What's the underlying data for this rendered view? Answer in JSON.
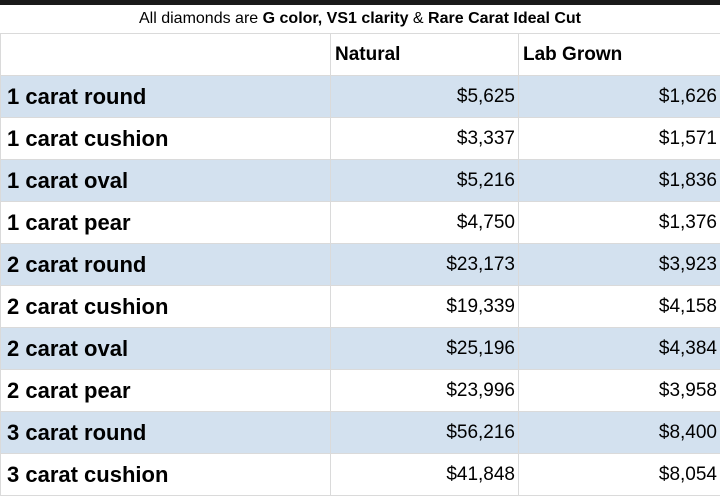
{
  "caption": {
    "prefix": "All diamonds are",
    "color_grade": "G color, VS1 clarity",
    "joiner": "&",
    "cut": "Rare Carat Ideal Cut"
  },
  "table": {
    "headers": [
      "",
      "Natural",
      "Lab Grown"
    ],
    "rows": [
      {
        "label": "1 carat round",
        "natural": "$5,625",
        "lab": "$1,626"
      },
      {
        "label": "1 carat cushion",
        "natural": "$3,337",
        "lab": "$1,571"
      },
      {
        "label": "1 carat oval",
        "natural": "$5,216",
        "lab": "$1,836"
      },
      {
        "label": "1 carat pear",
        "natural": "$4,750",
        "lab": "$1,376"
      },
      {
        "label": "2 carat round",
        "natural": "$23,173",
        "lab": "$3,923"
      },
      {
        "label": "2 carat cushion",
        "natural": "$19,339",
        "lab": "$4,158"
      },
      {
        "label": "2 carat oval",
        "natural": "$25,196",
        "lab": "$4,384"
      },
      {
        "label": "2 carat pear",
        "natural": "$23,996",
        "lab": "$3,958"
      },
      {
        "label": "3 carat round",
        "natural": "$56,216",
        "lab": "$8,400"
      },
      {
        "label": "3 carat cushion",
        "natural": "$41,848",
        "lab": "$8,054"
      }
    ]
  },
  "colors": {
    "row_shade": "#d3e1ef",
    "grid_line": "#dadada",
    "top_bar": "#1a1a1a"
  }
}
